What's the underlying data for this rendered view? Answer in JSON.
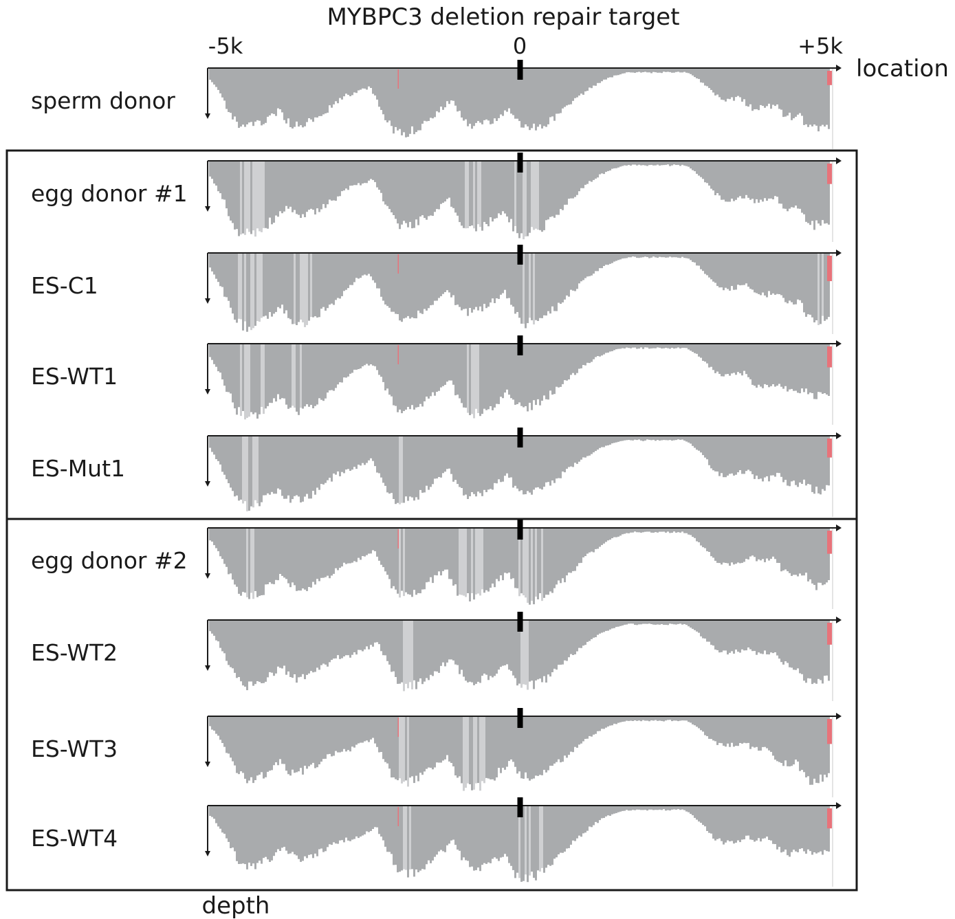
{
  "chart_data": {
    "type": "area",
    "title": "MYBPC3 deletion repair target",
    "xlabel": "location",
    "ylabel": "depth",
    "x_ticks": [
      {
        "value": -5000,
        "label": "-5k"
      },
      {
        "value": 0,
        "label": "0"
      },
      {
        "value": 5000,
        "label": "+5k"
      }
    ],
    "xlim": [
      -5000,
      5000
    ],
    "target_position": 0,
    "series": [
      {
        "name": "sperm donor"
      },
      {
        "name": "egg donor #1"
      },
      {
        "name": "ES-C1"
      },
      {
        "name": "ES-WT1"
      },
      {
        "name": "ES-Mut1"
      },
      {
        "name": "egg donor #2"
      },
      {
        "name": "ES-WT2"
      },
      {
        "name": "ES-WT3"
      },
      {
        "name": "ES-WT4"
      }
    ],
    "groups": [
      {
        "members": [
          "egg donor #1",
          "ES-C1",
          "ES-WT1",
          "ES-Mut1"
        ]
      },
      {
        "members": [
          "egg donor #2",
          "ES-WT2",
          "ES-WT3",
          "ES-WT4"
        ]
      }
    ],
    "coverage_peaks": [
      {
        "x": -4400,
        "depth": 1.0
      },
      {
        "x": -3600,
        "depth": 0.9
      },
      {
        "x": -3050,
        "depth": 0.5
      },
      {
        "x": -1900,
        "depth": 0.95
      },
      {
        "x": -820,
        "depth": 0.95
      },
      {
        "x": 50,
        "depth": 1.0
      },
      {
        "x": 3300,
        "depth": 0.5
      },
      {
        "x": 3800,
        "depth": 0.55
      },
      {
        "x": 4300,
        "depth": 0.65
      },
      {
        "x": 4700,
        "depth": 0.85
      }
    ],
    "colors": {
      "coverage": "#a9abad",
      "coverage_light": "#cfd0d2",
      "mismatch": "#e8737a",
      "axis": "#1a1a1a",
      "target": "#000000"
    }
  }
}
